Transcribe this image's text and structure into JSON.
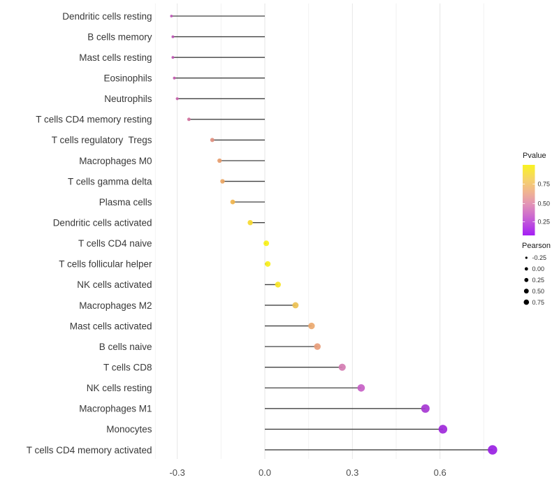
{
  "chart_data": {
    "type": "lollipop",
    "title": "",
    "xlabel": "",
    "ylabel": "",
    "orientation": "horizontal",
    "grid": true,
    "x_axis": {
      "tick_labels": [
        "-0.3",
        "0.0",
        "0.3",
        "0.6"
      ],
      "tick_values": [
        -0.3,
        0.0,
        0.3,
        0.6
      ],
      "minor_tick_values": [
        -0.15,
        0.15,
        0.45,
        0.75
      ],
      "range": [
        -0.375,
        0.85
      ]
    },
    "y_categories": [
      "Dendritic cells resting",
      "B cells memory",
      "Mast cells resting",
      "Eosinophils",
      "Neutrophils",
      "T cells CD4 memory resting",
      "T cells regulatory  Tregs",
      "Macrophages M0",
      "T cells gamma delta",
      "Plasma cells",
      "Dendritic cells activated",
      "T cells CD4 naive",
      "T cells follicular helper",
      "NK cells activated",
      "Macrophages M2",
      "Mast cells activated",
      "B cells naive",
      "T cells CD8",
      "NK cells resting",
      "Macrophages M1",
      "Monocytes",
      "T cells CD4 memory activated"
    ],
    "points": [
      {
        "label": "Dendritic cells resting",
        "pearson": -0.32,
        "pvalue_approx": 0.18,
        "color": "#bd53b4"
      },
      {
        "label": "B cells memory",
        "pearson": -0.315,
        "pvalue_approx": 0.18,
        "color": "#bd53b4"
      },
      {
        "label": "Mast cells resting",
        "pearson": -0.315,
        "pvalue_approx": 0.19,
        "color": "#bf55b2"
      },
      {
        "label": "Eosinophils",
        "pearson": -0.31,
        "pvalue_approx": 0.2,
        "color": "#c359ae"
      },
      {
        "label": "Neutrophils",
        "pearson": -0.3,
        "pvalue_approx": 0.21,
        "color": "#c75fab"
      },
      {
        "label": "T cells CD4 memory resting",
        "pearson": -0.26,
        "pvalue_approx": 0.3,
        "color": "#d1739e"
      },
      {
        "label": "T cells regulatory  Tregs",
        "pearson": -0.18,
        "pvalue_approx": 0.42,
        "color": "#e08f7f"
      },
      {
        "label": "Macrophages M0",
        "pearson": -0.155,
        "pvalue_approx": 0.47,
        "color": "#e69c6d"
      },
      {
        "label": "T cells gamma delta",
        "pearson": -0.145,
        "pvalue_approx": 0.51,
        "color": "#eaa562"
      },
      {
        "label": "Plasma cells",
        "pearson": -0.11,
        "pvalue_approx": 0.57,
        "color": "#f0b44c"
      },
      {
        "label": "Dendritic cells activated",
        "pearson": -0.05,
        "pvalue_approx": 0.72,
        "color": "#f6d92f"
      },
      {
        "label": "T cells CD4 naive",
        "pearson": 0.005,
        "pvalue_approx": 0.93,
        "color": "#f9f118"
      },
      {
        "label": "T cells follicular helper",
        "pearson": 0.01,
        "pvalue_approx": 0.9,
        "color": "#f9ef1c"
      },
      {
        "label": "NK cells activated",
        "pearson": 0.045,
        "pvalue_approx": 0.82,
        "color": "#f8e525"
      },
      {
        "label": "Macrophages M2",
        "pearson": 0.105,
        "pvalue_approx": 0.62,
        "color": "#edc153"
      },
      {
        "label": "Mast cells activated",
        "pearson": 0.16,
        "pvalue_approx": 0.5,
        "color": "#eca96f"
      },
      {
        "label": "B cells naive",
        "pearson": 0.18,
        "pvalue_approx": 0.45,
        "color": "#e89d7a"
      },
      {
        "label": "T cells CD8",
        "pearson": 0.265,
        "pvalue_approx": 0.32,
        "color": "#d47cb2"
      },
      {
        "label": "NK cells resting",
        "pearson": 0.33,
        "pvalue_approx": 0.2,
        "color": "#c75fc5"
      },
      {
        "label": "Macrophages M1",
        "pearson": 0.55,
        "pvalue_approx": 0.07,
        "color": "#a637d2"
      },
      {
        "label": "Monocytes",
        "pearson": 0.61,
        "pvalue_approx": 0.05,
        "color": "#9e28da"
      },
      {
        "label": "T cells CD4 memory activated",
        "pearson": 0.78,
        "pvalue_approx": 0.02,
        "color": "#991fe3"
      }
    ],
    "stick_color": "#404040",
    "background": "#ffffff",
    "legends": {
      "position": "right",
      "pvalue": {
        "title": "Pvalue",
        "tick_labels": [
          "0.75",
          "0.50",
          "0.25"
        ],
        "gradient_stops": [
          {
            "offset": "0%",
            "color": "#f9f321"
          },
          {
            "offset": "20%",
            "color": "#f6d468"
          },
          {
            "offset": "38%",
            "color": "#f0b590"
          },
          {
            "offset": "55%",
            "color": "#e395b5"
          },
          {
            "offset": "75%",
            "color": "#c965d2"
          },
          {
            "offset": "100%",
            "color": "#a41ef5"
          }
        ]
      },
      "pearson": {
        "title": "Pearson",
        "dot_color": "#000000",
        "items": [
          {
            "label": "-0.25",
            "r": 1.6
          },
          {
            "label": "0.00",
            "r": 2.4
          },
          {
            "label": "0.25",
            "r": 2.9
          },
          {
            "label": "0.50",
            "r": 3.4
          },
          {
            "label": "0.75",
            "r": 3.8
          }
        ]
      }
    }
  }
}
